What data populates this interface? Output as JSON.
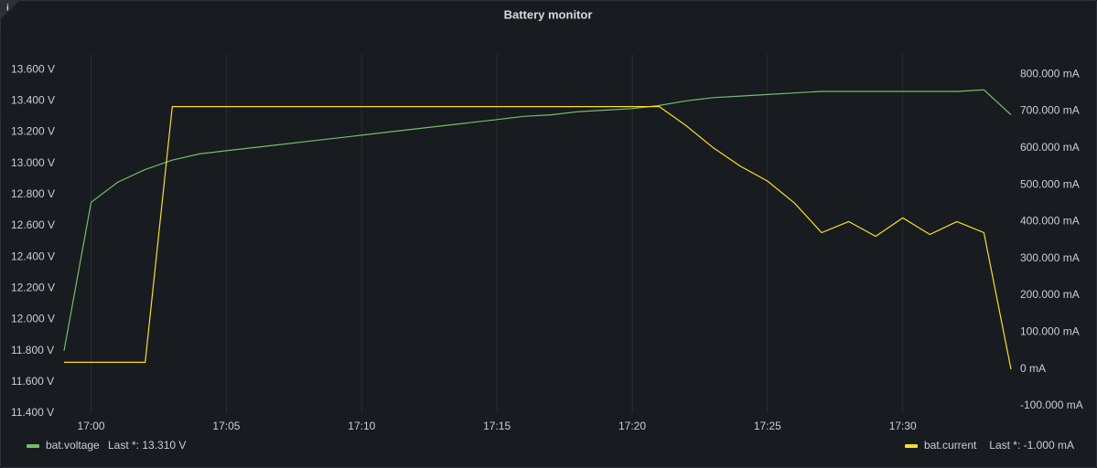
{
  "chart_data": {
    "type": "line",
    "title": "Battery monitor",
    "info_icon": "i",
    "x": [
      "16:59",
      "17:00",
      "17:01",
      "17:02",
      "17:03",
      "17:04",
      "17:05",
      "17:06",
      "17:07",
      "17:08",
      "17:09",
      "17:10",
      "17:11",
      "17:12",
      "17:13",
      "17:14",
      "17:15",
      "17:16",
      "17:17",
      "17:18",
      "17:19",
      "17:20",
      "17:21",
      "17:22",
      "17:23",
      "17:24",
      "17:25",
      "17:26",
      "17:27",
      "17:28",
      "17:29",
      "17:30",
      "17:31",
      "17:32",
      "17:33",
      "17:34"
    ],
    "xlim": [
      "16:59",
      "17:34"
    ],
    "xticks": [
      "17:00",
      "17:05",
      "17:10",
      "17:15",
      "17:20",
      "17:25",
      "17:30"
    ],
    "ylim": [
      11.4,
      13.7
    ],
    "yticks": [
      {
        "value": 11.4,
        "label": "11.400 V"
      },
      {
        "value": 11.6,
        "label": "11.600 V"
      },
      {
        "value": 11.8,
        "label": "11.800 V"
      },
      {
        "value": 12.0,
        "label": "12.000 V"
      },
      {
        "value": 12.2,
        "label": "12.200 V"
      },
      {
        "value": 12.4,
        "label": "12.400 V"
      },
      {
        "value": 12.6,
        "label": "12.600 V"
      },
      {
        "value": 12.8,
        "label": "12.800 V"
      },
      {
        "value": 13.0,
        "label": "13.000 V"
      },
      {
        "value": 13.2,
        "label": "13.200 V"
      },
      {
        "value": 13.4,
        "label": "13.400 V"
      },
      {
        "value": 13.6,
        "label": "13.600 V"
      }
    ],
    "y2lim": [
      -120,
      855
    ],
    "y2ticks": [
      {
        "value": -100,
        "label": "-100.000 mA"
      },
      {
        "value": 0,
        "label": "0 mA"
      },
      {
        "value": 100,
        "label": "100.000 mA"
      },
      {
        "value": 200,
        "label": "200.000 mA"
      },
      {
        "value": 300,
        "label": "300.000 mA"
      },
      {
        "value": 400,
        "label": "400.000 mA"
      },
      {
        "value": 500,
        "label": "500.000 mA"
      },
      {
        "value": 600,
        "label": "600.000 mA"
      },
      {
        "value": 700,
        "label": "700.000 mA"
      },
      {
        "value": 800,
        "label": "800.000 mA"
      }
    ],
    "grid": true,
    "series": [
      {
        "name": "bat.voltage",
        "legend_value": "Last *: 13.310 V",
        "color": "#73bf69",
        "axis": "y",
        "values": [
          11.8,
          12.75,
          12.88,
          12.96,
          13.02,
          13.06,
          13.08,
          13.1,
          13.12,
          13.14,
          13.16,
          13.18,
          13.2,
          13.22,
          13.24,
          13.26,
          13.28,
          13.3,
          13.31,
          13.33,
          13.34,
          13.35,
          13.37,
          13.4,
          13.42,
          13.43,
          13.44,
          13.45,
          13.46,
          13.46,
          13.46,
          13.46,
          13.46,
          13.46,
          13.47,
          13.31
        ]
      },
      {
        "name": "bat.current",
        "legend_value": "Last *: -1.000 mA",
        "color": "#fade2a",
        "axis": "y2",
        "values": [
          18,
          18,
          18,
          18,
          712,
          712,
          712,
          712,
          712,
          712,
          712,
          712,
          712,
          712,
          712,
          712,
          712,
          712,
          712,
          712,
          712,
          712,
          712,
          660,
          600,
          550,
          510,
          450,
          370,
          400,
          360,
          410,
          365,
          400,
          370,
          -1
        ]
      }
    ]
  }
}
